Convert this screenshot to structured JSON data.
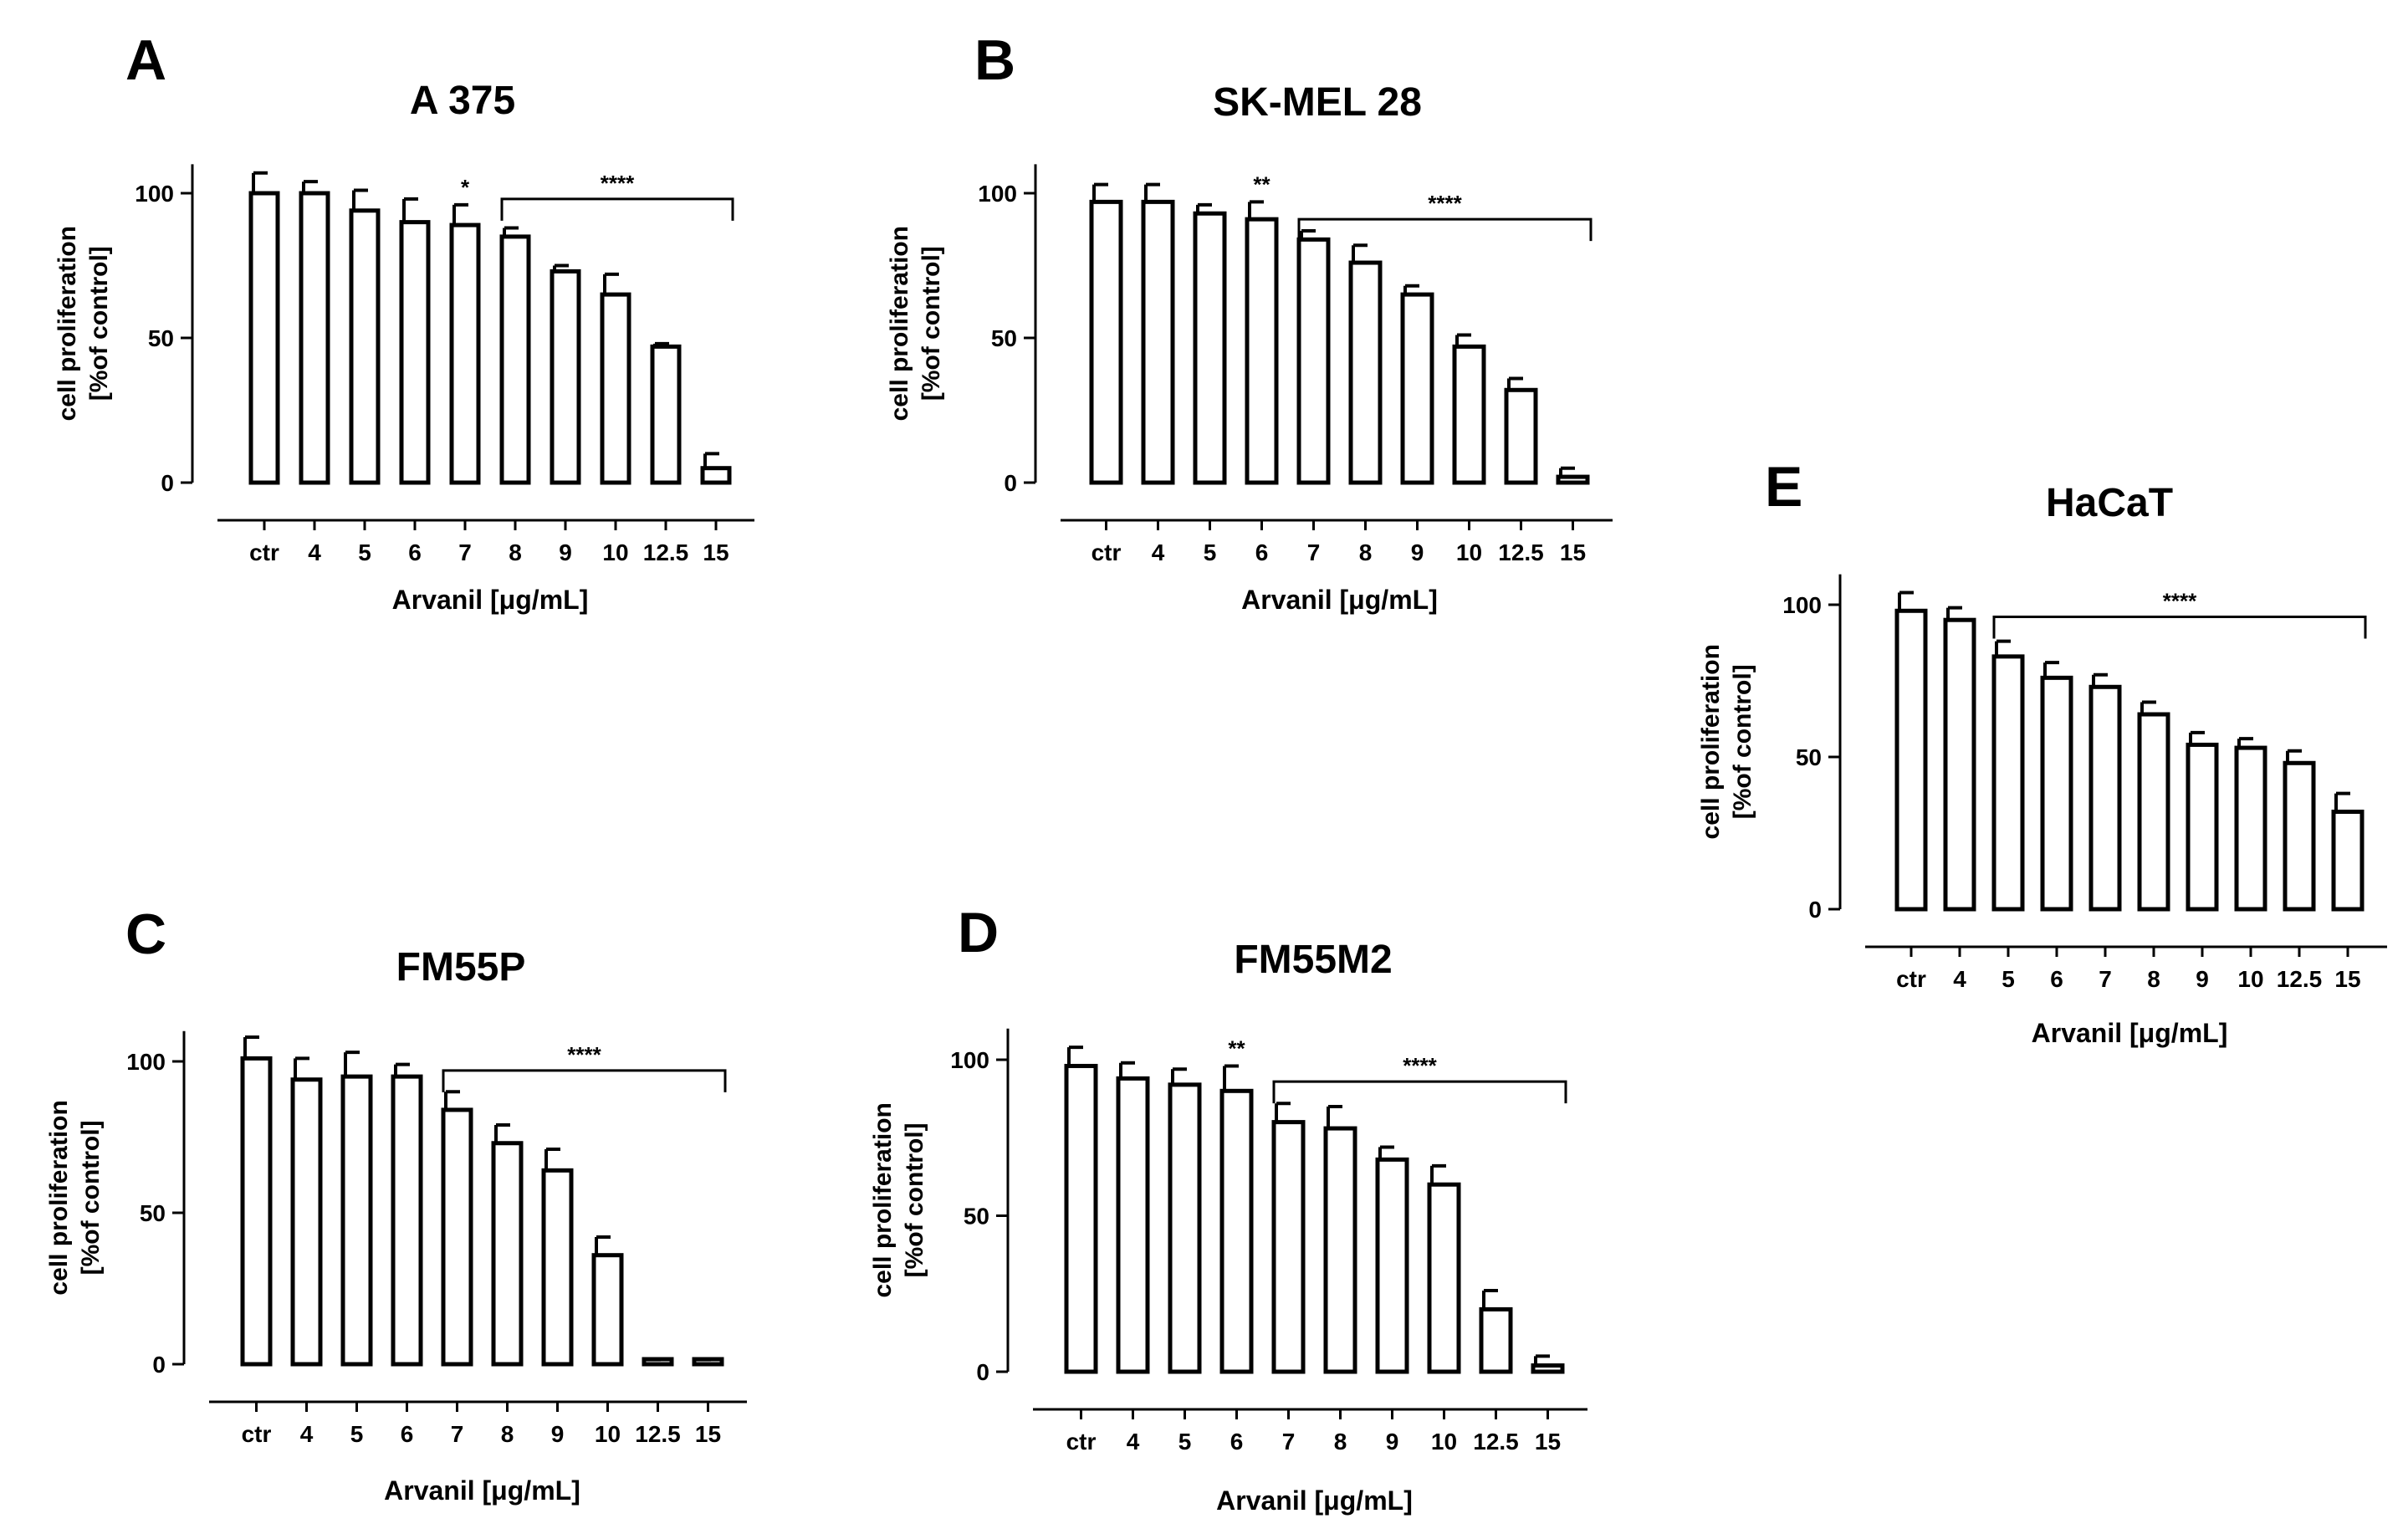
{
  "chart_data": [
    {
      "panel": "A",
      "title": "A 375",
      "type": "bar",
      "xlabel": "Arvanil [μg/mL]",
      "ylabel_line1": "cell proliferation",
      "ylabel_line2": "[%of control]",
      "ylim": [
        0,
        110
      ],
      "yticks": [
        "0",
        "50",
        "100"
      ],
      "categories": [
        "ctr",
        "4",
        "5",
        "6",
        "7",
        "8",
        "9",
        "10",
        "12.5",
        "15"
      ],
      "values": [
        100,
        100,
        94,
        90,
        89,
        85,
        73,
        65,
        47,
        5
      ],
      "errors": [
        7,
        4,
        7,
        8,
        7,
        3,
        2,
        7,
        1,
        5
      ],
      "single_stars": [
        {
          "category": "7",
          "label": "*"
        }
      ],
      "bracket": {
        "from": "8",
        "to": "15",
        "label": "****",
        "y": 98
      }
    },
    {
      "panel": "B",
      "title": "SK-MEL 28",
      "type": "bar",
      "xlabel": "Arvanil [μg/mL]",
      "ylabel_line1": "cell proliferation",
      "ylabel_line2": "[%of control]",
      "ylim": [
        0,
        110
      ],
      "yticks": [
        "0",
        "50",
        "100"
      ],
      "categories": [
        "ctr",
        "4",
        "5",
        "6",
        "7",
        "8",
        "9",
        "10",
        "12.5",
        "15"
      ],
      "values": [
        97,
        97,
        93,
        91,
        84,
        76,
        65,
        47,
        32,
        2
      ],
      "errors": [
        6,
        6,
        3,
        6,
        3,
        6,
        3,
        4,
        4,
        3
      ],
      "single_stars": [
        {
          "category": "6",
          "label": "**"
        }
      ],
      "bracket": {
        "from": "7",
        "to": "15",
        "label": "****",
        "y": 91
      }
    },
    {
      "panel": "C",
      "title": "FM55P",
      "type": "bar",
      "xlabel": "Arvanil [μg/mL]",
      "ylabel_line1": "cell proliferation",
      "ylabel_line2": "[%of control]",
      "ylim": [
        0,
        110
      ],
      "yticks": [
        "0",
        "50",
        "100"
      ],
      "categories": [
        "ctr",
        "4",
        "5",
        "6",
        "7",
        "8",
        "9",
        "10",
        "12.5",
        "15"
      ],
      "values": [
        101,
        94,
        95,
        95,
        84,
        73,
        64,
        36,
        1,
        1
      ],
      "errors": [
        7,
        7,
        8,
        4,
        6,
        6,
        7,
        6,
        0.5,
        0.5
      ],
      "single_stars": [],
      "bracket": {
        "from": "7",
        "to": "15",
        "label": "****",
        "y": 97
      }
    },
    {
      "panel": "D",
      "title": "FM55M2",
      "type": "bar",
      "xlabel": "Arvanil [μg/mL]",
      "ylabel_line1": "cell proliferation",
      "ylabel_line2": "[%of control]",
      "ylim": [
        0,
        110
      ],
      "yticks": [
        "0",
        "50",
        "100"
      ],
      "categories": [
        "ctr",
        "4",
        "5",
        "6",
        "7",
        "8",
        "9",
        "10",
        "12.5",
        "15"
      ],
      "values": [
        98,
        94,
        92,
        90,
        80,
        78,
        68,
        60,
        20,
        2
      ],
      "errors": [
        6,
        5,
        5,
        8,
        6,
        7,
        4,
        6,
        6,
        3
      ],
      "single_stars": [
        {
          "category": "6",
          "label": "**"
        }
      ],
      "bracket": {
        "from": "7",
        "to": "15",
        "label": "****",
        "y": 93
      }
    },
    {
      "panel": "E",
      "title": "HaCaT",
      "type": "bar",
      "xlabel": "Arvanil [μg/mL]",
      "ylabel_line1": "cell proliferation",
      "ylabel_line2": "[%of control]",
      "ylim": [
        0,
        110
      ],
      "yticks": [
        "0",
        "50",
        "100"
      ],
      "categories": [
        "ctr",
        "4",
        "5",
        "6",
        "7",
        "8",
        "9",
        "10",
        "12.5",
        "15"
      ],
      "values": [
        98,
        95,
        83,
        76,
        73,
        64,
        54,
        53,
        48,
        32
      ],
      "errors": [
        6,
        4,
        5,
        5,
        4,
        4,
        4,
        3,
        4,
        6
      ],
      "single_stars": [],
      "bracket": {
        "from": "5",
        "to": "15",
        "label": "****",
        "y": 96
      }
    }
  ]
}
